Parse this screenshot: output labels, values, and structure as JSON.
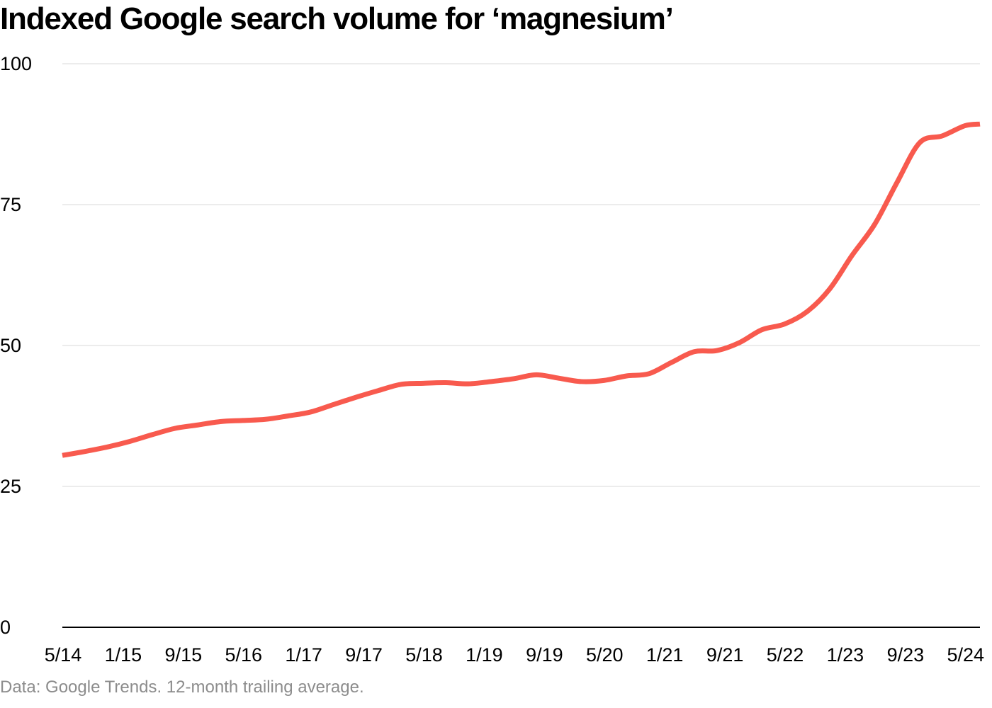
{
  "title": "Indexed Google search volume for ‘magnesium’",
  "source_note": "Data: Google Trends. 12-month trailing average.",
  "colors": {
    "line": "#f85a4e",
    "grid": "#d9d9d9",
    "axis": "#000000",
    "tick_text": "#000000",
    "note_text": "#8c8c8c"
  },
  "chart_data": {
    "type": "line",
    "title": "Indexed Google search volume for ‘magnesium’",
    "xlabel": "",
    "ylabel": "",
    "ylim": [
      0,
      100
    ],
    "y_ticks": [
      0,
      25,
      50,
      75,
      100
    ],
    "grid": "horizontal",
    "legend": "none",
    "x_tick_labels": [
      "5/14",
      "1/15",
      "9/15",
      "5/16",
      "1/17",
      "9/17",
      "5/18",
      "1/19",
      "9/19",
      "5/20",
      "1/21",
      "9/21",
      "5/22",
      "1/23",
      "9/23",
      "5/24"
    ],
    "x_range": [
      "2014-05",
      "2024-07"
    ],
    "series": [
      {
        "x": [
          "2014-05",
          "2014-08",
          "2014-11",
          "2015-02",
          "2015-05",
          "2015-08",
          "2015-11",
          "2016-02",
          "2016-05",
          "2016-08",
          "2016-11",
          "2017-02",
          "2017-05",
          "2017-08",
          "2017-11",
          "2018-02",
          "2018-05",
          "2018-08",
          "2018-11",
          "2019-02",
          "2019-05",
          "2019-08",
          "2019-11",
          "2020-02",
          "2020-05",
          "2020-08",
          "2020-11",
          "2021-02",
          "2021-05",
          "2021-08",
          "2021-11",
          "2022-02",
          "2022-05",
          "2022-08",
          "2022-11",
          "2023-02",
          "2023-05",
          "2023-08",
          "2023-11",
          "2024-02",
          "2024-05",
          "2024-07"
        ],
        "values": [
          30.5,
          31.2,
          32.0,
          33.0,
          34.2,
          35.3,
          35.9,
          36.5,
          36.7,
          36.9,
          37.5,
          38.2,
          39.5,
          40.8,
          42.0,
          43.1,
          43.3,
          43.4,
          43.2,
          43.6,
          44.1,
          44.8,
          44.2,
          43.6,
          43.8,
          44.6,
          45.0,
          47.0,
          48.9,
          49.1,
          50.5,
          52.8,
          53.8,
          56.0,
          60.0,
          66.0,
          71.5,
          79.0,
          86.0,
          87.2,
          89.0,
          89.3
        ]
      }
    ]
  }
}
